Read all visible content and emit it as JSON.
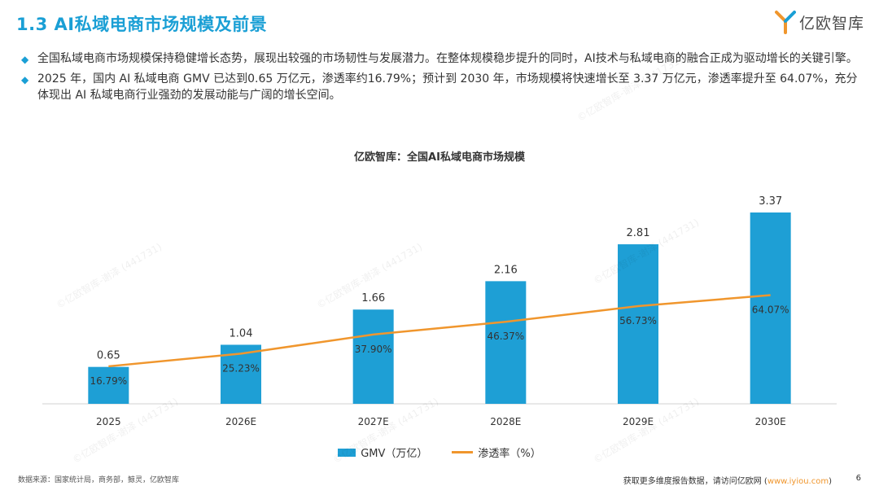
{
  "header": {
    "title": "1.3 AI私域电商市场规模及前景",
    "logo_text": "亿欧智库"
  },
  "bullets": [
    "全国私域电商市场规模保持稳健增长态势，展现出较强的市场韧性与发展潜力。在整体规模稳步提升的同时，AI技术与私域电商的融合正成为驱动增长的关键引擎。",
    "2025 年，国内 AI 私域电商 GMV 已达到0.65 万亿元，渗透率约16.79%；预计到 2030 年，市场规模将快速增长至 3.37 万亿元，渗透率提升至 64.07%，充分体现出 AI 私域电商行业强劲的发展动能与广阔的增长空间。"
  ],
  "chart_data": {
    "type": "bar",
    "title": "亿欧智库：全国AI私域电商市场规模",
    "categories": [
      "2025",
      "2026E",
      "2027E",
      "2028E",
      "2029E",
      "2030E"
    ],
    "series": [
      {
        "name": "GMV（万亿）",
        "type": "bar",
        "values": [
          0.65,
          1.04,
          1.66,
          2.16,
          2.81,
          3.37
        ],
        "labels": [
          "0.65",
          "1.04",
          "1.66",
          "2.16",
          "2.81",
          "3.37"
        ],
        "color": "#1e9fd5"
      },
      {
        "name": "渗透率（%）",
        "type": "line",
        "values": [
          16.79,
          25.23,
          37.9,
          46.37,
          56.73,
          64.07
        ],
        "labels": [
          "16.79%",
          "25.23%",
          "37.90%",
          "46.37%",
          "56.73%",
          "64.07%"
        ],
        "color": "#f0962d"
      }
    ],
    "ylim_bar": [
      0,
      4
    ],
    "ylim_line": [
      0,
      100
    ],
    "legend": "bottom-center",
    "grid": false
  },
  "watermark": "©亿欧智库-谢泽 (441731)",
  "footer": {
    "source": "数据来源：国家统计局，商务部，鲸灵，亿欧智库",
    "visit_prefix": "获取更多维度报告数据，请访问亿欧网 (",
    "visit_link": "www.iyiou.com",
    "visit_suffix": ")",
    "page_number": "6"
  },
  "colors": {
    "accent": "#1a9fd5",
    "bar": "#1e9fd5",
    "line": "#f0962d"
  }
}
